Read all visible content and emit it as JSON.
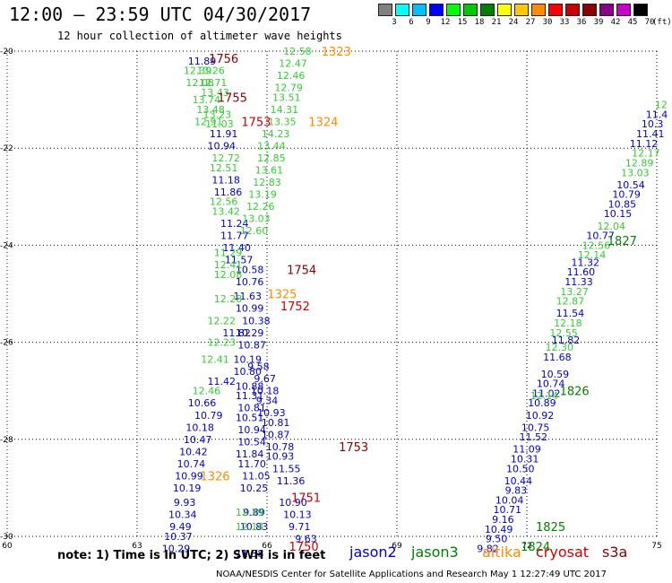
{
  "header": {
    "title": "12:00 – 23:59 UTC 04/30/2017",
    "subtitle": "12 hour collection of altimeter wave heights"
  },
  "colorbar": {
    "unit": "(ft)",
    "levels": [
      "3",
      "6",
      "9",
      "12",
      "15",
      "18",
      "21",
      "24",
      "27",
      "30",
      "33",
      "36",
      "39",
      "42",
      "45",
      "70"
    ],
    "colors": [
      "#808080",
      "#00ffff",
      "#00bfff",
      "#0000ff",
      "#00ff00",
      "#00c800",
      "#008000",
      "#ffff00",
      "#ffc800",
      "#ff8c00",
      "#ff0000",
      "#c80000",
      "#8b0000",
      "#8b008b",
      "#c800c8",
      "#000000"
    ]
  },
  "note": "note: 1) Time is in UTC; 2) SWH is in feet",
  "credit": "NOAA/NESDIS Center for Satellite Applications and Research   May  1 12:27:49 UTC 2017",
  "legend": [
    {
      "name": "jason2",
      "color": "#0000c8"
    },
    {
      "name": "jason3",
      "color": "#008000"
    },
    {
      "name": "altika",
      "color": "#ff8c00"
    },
    {
      "name": "cryosat",
      "color": "#cc0000"
    },
    {
      "name": "s3a",
      "color": "#8b0000"
    }
  ],
  "chart_data": {
    "type": "scatter",
    "title": "12 hour collection of altimeter wave heights",
    "xlim": [
      60,
      75
    ],
    "ylim": [
      -30,
      -20
    ],
    "x_ticks": [
      "60",
      "63",
      "66",
      "69",
      "72",
      "75"
    ],
    "y_ticks": [
      "-20",
      "-22",
      "-24",
      "-26",
      "-28",
      "-30"
    ],
    "grid": true,
    "series": [
      {
        "name": "jason2",
        "color": "#0000c8",
        "points": [
          {
            "x": 64.5,
            "y": -20.2,
            "v": "11.89"
          },
          {
            "x": 65.0,
            "y": -21.7,
            "v": "11.91"
          },
          {
            "x": 64.95,
            "y": -21.95,
            "v": "10.94"
          },
          {
            "x": 65.05,
            "y": -22.65,
            "v": "11.18"
          },
          {
            "x": 65.1,
            "y": -22.9,
            "v": "11.86"
          },
          {
            "x": 65.25,
            "y": -23.55,
            "v": "11.24"
          },
          {
            "x": 65.25,
            "y": -23.8,
            "v": "11.77"
          },
          {
            "x": 65.3,
            "y": -24.05,
            "v": "11.40"
          },
          {
            "x": 65.35,
            "y": -24.3,
            "v": "11.57"
          },
          {
            "x": 65.6,
            "y": -24.5,
            "v": "10.58"
          },
          {
            "x": 65.6,
            "y": -24.75,
            "v": "10.76"
          },
          {
            "x": 65.55,
            "y": -25.05,
            "v": "11.63"
          },
          {
            "x": 65.6,
            "y": -25.3,
            "v": "10.99"
          },
          {
            "x": 65.75,
            "y": -25.55,
            "v": "10.38"
          },
          {
            "x": 65.3,
            "y": -25.8,
            "v": "11.82"
          },
          {
            "x": 65.6,
            "y": -25.8,
            "v": "10.29"
          },
          {
            "x": 65.65,
            "y": -26.05,
            "v": "10.87"
          },
          {
            "x": 65.55,
            "y": -26.35,
            "v": "10.19"
          },
          {
            "x": 65.8,
            "y": -26.5,
            "v": "9.58"
          },
          {
            "x": 65.55,
            "y": -26.6,
            "v": "10.80"
          },
          {
            "x": 65.95,
            "y": -26.75,
            "v": "9.67"
          },
          {
            "x": 64.95,
            "y": -26.8,
            "v": "11.42"
          },
          {
            "x": 65.6,
            "y": -26.9,
            "v": "10.88"
          },
          {
            "x": 65.95,
            "y": -27.0,
            "v": "10.18"
          },
          {
            "x": 65.6,
            "y": -27.1,
            "v": "11.31"
          },
          {
            "x": 66.0,
            "y": -27.2,
            "v": "9.34"
          },
          {
            "x": 64.5,
            "y": -27.25,
            "v": "10.66"
          },
          {
            "x": 65.65,
            "y": -27.35,
            "v": "10.81"
          },
          {
            "x": 66.1,
            "y": -27.45,
            "v": "10.93"
          },
          {
            "x": 64.65,
            "y": -27.5,
            "v": "10.79"
          },
          {
            "x": 65.6,
            "y": -27.55,
            "v": "10.51"
          },
          {
            "x": 66.2,
            "y": -27.65,
            "v": "10.81"
          },
          {
            "x": 64.45,
            "y": -27.75,
            "v": "10.18"
          },
          {
            "x": 65.65,
            "y": -27.8,
            "v": "10.94"
          },
          {
            "x": 66.2,
            "y": -27.9,
            "v": "10.87"
          },
          {
            "x": 64.4,
            "y": -28.0,
            "v": "10.47"
          },
          {
            "x": 65.65,
            "y": -28.05,
            "v": "10.54"
          },
          {
            "x": 66.3,
            "y": -28.15,
            "v": "10.78"
          },
          {
            "x": 64.3,
            "y": -28.25,
            "v": "10.42"
          },
          {
            "x": 65.6,
            "y": -28.3,
            "v": "11.84"
          },
          {
            "x": 66.3,
            "y": -28.35,
            "v": "10.93"
          },
          {
            "x": 64.25,
            "y": -28.5,
            "v": "10.74"
          },
          {
            "x": 65.65,
            "y": -28.5,
            "v": "11.70"
          },
          {
            "x": 66.45,
            "y": -28.6,
            "v": "11.55"
          },
          {
            "x": 64.2,
            "y": -28.75,
            "v": "10.99"
          },
          {
            "x": 65.75,
            "y": -28.75,
            "v": "11.05"
          },
          {
            "x": 66.55,
            "y": -28.85,
            "v": "11.36"
          },
          {
            "x": 64.15,
            "y": -29.0,
            "v": "10.19"
          },
          {
            "x": 65.7,
            "y": -29.0,
            "v": "10.25"
          },
          {
            "x": 64.1,
            "y": -29.3,
            "v": "9.93"
          },
          {
            "x": 65.7,
            "y": -29.5,
            "v": "9.89"
          },
          {
            "x": 66.6,
            "y": -29.3,
            "v": "10.90"
          },
          {
            "x": 64.05,
            "y": -29.55,
            "v": "10.34"
          },
          {
            "x": 66.7,
            "y": -29.55,
            "v": "10.13"
          },
          {
            "x": 64.0,
            "y": -29.8,
            "v": "9.49"
          },
          {
            "x": 65.7,
            "y": -29.8,
            "v": "10.83"
          },
          {
            "x": 66.75,
            "y": -29.8,
            "v": "9.71"
          },
          {
            "x": 63.95,
            "y": -30.0,
            "v": "10.37"
          },
          {
            "x": 66.9,
            "y": -30.05,
            "v": "9.63"
          },
          {
            "x": 63.9,
            "y": -30.25,
            "v": "10.29"
          },
          {
            "x": 65.6,
            "y": -30.35,
            "v": "11.38"
          },
          {
            "x": 75.0,
            "y": -21.3,
            "v": "11.4"
          },
          {
            "x": 74.9,
            "y": -21.5,
            "v": "10.3"
          },
          {
            "x": 74.85,
            "y": -21.7,
            "v": "11.41"
          },
          {
            "x": 74.7,
            "y": -21.9,
            "v": "11.12"
          },
          {
            "x": 74.4,
            "y": -22.75,
            "v": "10.54"
          },
          {
            "x": 74.3,
            "y": -22.95,
            "v": "10.79"
          },
          {
            "x": 74.2,
            "y": -23.15,
            "v": "10.85"
          },
          {
            "x": 74.1,
            "y": -23.35,
            "v": "10.15"
          },
          {
            "x": 73.7,
            "y": -23.8,
            "v": "10.77"
          },
          {
            "x": 73.35,
            "y": -24.35,
            "v": "11.32"
          },
          {
            "x": 73.25,
            "y": -24.55,
            "v": "11.60"
          },
          {
            "x": 73.2,
            "y": -24.75,
            "v": "11.33"
          },
          {
            "x": 73.0,
            "y": -25.4,
            "v": "11.54"
          },
          {
            "x": 72.9,
            "y": -25.95,
            "v": "11.82"
          },
          {
            "x": 72.7,
            "y": -26.3,
            "v": "11.68"
          },
          {
            "x": 72.65,
            "y": -26.65,
            "v": "10.59"
          },
          {
            "x": 72.55,
            "y": -26.85,
            "v": "10.74"
          },
          {
            "x": 72.45,
            "y": -27.05,
            "v": "11.02"
          },
          {
            "x": 72.35,
            "y": -27.25,
            "v": "10.89"
          },
          {
            "x": 72.3,
            "y": -27.5,
            "v": "10.92"
          },
          {
            "x": 72.2,
            "y": -27.75,
            "v": "10.75"
          },
          {
            "x": 72.15,
            "y": -27.95,
            "v": "11.52"
          },
          {
            "x": 72.0,
            "y": -28.2,
            "v": "11.09"
          },
          {
            "x": 71.95,
            "y": -28.4,
            "v": "10.31"
          },
          {
            "x": 71.85,
            "y": -28.6,
            "v": "10.50"
          },
          {
            "x": 71.8,
            "y": -28.85,
            "v": "10.44"
          },
          {
            "x": 71.75,
            "y": -29.05,
            "v": "9.83"
          },
          {
            "x": 71.6,
            "y": -29.25,
            "v": "10.04"
          },
          {
            "x": 71.55,
            "y": -29.45,
            "v": "10.71"
          },
          {
            "x": 71.45,
            "y": -29.65,
            "v": "9.16"
          },
          {
            "x": 71.35,
            "y": -29.85,
            "v": "10.49"
          },
          {
            "x": 71.3,
            "y": -30.05,
            "v": "9.50"
          },
          {
            "x": 71.1,
            "y": -30.25,
            "v": "9.82"
          }
        ]
      },
      {
        "name": "jason3",
        "color": "#32cd32",
        "points": [
          {
            "x": 66.7,
            "y": -20.0,
            "v": "12.58"
          },
          {
            "x": 66.6,
            "y": -20.25,
            "v": "12.47"
          },
          {
            "x": 66.55,
            "y": -20.5,
            "v": "12.46"
          },
          {
            "x": 66.5,
            "y": -20.75,
            "v": "12.79"
          },
          {
            "x": 66.45,
            "y": -20.95,
            "v": "13.51"
          },
          {
            "x": 66.4,
            "y": -21.2,
            "v": "14.31"
          },
          {
            "x": 66.35,
            "y": -21.45,
            "v": "13.35"
          },
          {
            "x": 66.2,
            "y": -21.7,
            "v": "14.23"
          },
          {
            "x": 66.1,
            "y": -21.95,
            "v": "13.44"
          },
          {
            "x": 66.1,
            "y": -22.2,
            "v": "12.85"
          },
          {
            "x": 66.05,
            "y": -22.45,
            "v": "13.61"
          },
          {
            "x": 66.0,
            "y": -22.7,
            "v": "12.83"
          },
          {
            "x": 65.9,
            "y": -22.95,
            "v": "13.19"
          },
          {
            "x": 65.85,
            "y": -23.2,
            "v": "12.26"
          },
          {
            "x": 65.75,
            "y": -23.45,
            "v": "13.03"
          },
          {
            "x": 65.7,
            "y": -23.7,
            "v": "12.60"
          },
          {
            "x": 64.4,
            "y": -20.4,
            "v": "12.39"
          },
          {
            "x": 64.7,
            "y": -20.4,
            "v": "13.26"
          },
          {
            "x": 64.45,
            "y": -20.65,
            "v": "12.08"
          },
          {
            "x": 64.75,
            "y": -20.65,
            "v": "12.71"
          },
          {
            "x": 64.8,
            "y": -20.85,
            "v": "13.43"
          },
          {
            "x": 64.6,
            "y": -21.0,
            "v": "13.74"
          },
          {
            "x": 64.7,
            "y": -21.2,
            "v": "13.48"
          },
          {
            "x": 64.85,
            "y": -21.3,
            "v": "13.23"
          },
          {
            "x": 64.65,
            "y": -21.45,
            "v": "12.91"
          },
          {
            "x": 64.9,
            "y": -21.5,
            "v": "11.03"
          },
          {
            "x": 65.05,
            "y": -22.2,
            "v": "12.72"
          },
          {
            "x": 65.0,
            "y": -22.4,
            "v": "12.51"
          },
          {
            "x": 65.0,
            "y": -23.1,
            "v": "12.56"
          },
          {
            "x": 65.05,
            "y": -23.3,
            "v": "13.42"
          },
          {
            "x": 65.1,
            "y": -24.15,
            "v": "11.29"
          },
          {
            "x": 65.1,
            "y": -24.4,
            "v": "12.41"
          },
          {
            "x": 65.1,
            "y": -24.6,
            "v": "12.08"
          },
          {
            "x": 65.1,
            "y": -25.1,
            "v": "12.28"
          },
          {
            "x": 64.95,
            "y": -25.55,
            "v": "12.22"
          },
          {
            "x": 64.95,
            "y": -26.0,
            "v": "12.23"
          },
          {
            "x": 64.8,
            "y": -26.35,
            "v": "12.41"
          },
          {
            "x": 64.6,
            "y": -27.0,
            "v": "12.46"
          },
          {
            "x": 65.6,
            "y": -29.5,
            "v": "12.39"
          },
          {
            "x": 65.6,
            "y": -29.8,
            "v": "12.14"
          },
          {
            "x": 75.1,
            "y": -21.1,
            "v": "12"
          },
          {
            "x": 74.75,
            "y": -22.1,
            "v": "12.17"
          },
          {
            "x": 74.6,
            "y": -22.3,
            "v": "12.89"
          },
          {
            "x": 74.5,
            "y": -22.5,
            "v": "13.03"
          },
          {
            "x": 73.95,
            "y": -23.6,
            "v": "12.04"
          },
          {
            "x": 73.6,
            "y": -24.0,
            "v": "12.56"
          },
          {
            "x": 73.5,
            "y": -24.2,
            "v": "12.14"
          },
          {
            "x": 73.1,
            "y": -24.95,
            "v": "13.27"
          },
          {
            "x": 73.0,
            "y": -25.15,
            "v": "12.87"
          },
          {
            "x": 72.95,
            "y": -25.6,
            "v": "12.18"
          },
          {
            "x": 72.85,
            "y": -25.8,
            "v": "12.55"
          },
          {
            "x": 72.75,
            "y": -26.1,
            "v": "12.30"
          },
          {
            "x": 72.4,
            "y": -27.1,
            "v": "12.14"
          }
        ]
      },
      {
        "name": "altika",
        "color": "#ff8c00",
        "points": []
      }
    ],
    "time_labels": [
      {
        "x": 65.0,
        "y": -20.15,
        "t": "1756",
        "color": "#8b0000"
      },
      {
        "x": 67.6,
        "y": -20.0,
        "t": "1323",
        "color": "#ff8c00"
      },
      {
        "x": 65.2,
        "y": -20.95,
        "t": "1755",
        "color": "#8b0000"
      },
      {
        "x": 65.75,
        "y": -21.45,
        "t": "1753",
        "color": "#cc0000"
      },
      {
        "x": 67.3,
        "y": -21.45,
        "t": "1324",
        "color": "#ff8c00"
      },
      {
        "x": 66.8,
        "y": -24.5,
        "t": "1754",
        "color": "#8b0000"
      },
      {
        "x": 66.35,
        "y": -25.0,
        "t": "1325",
        "color": "#ff8c00"
      },
      {
        "x": 66.65,
        "y": -25.25,
        "t": "1752",
        "color": "#cc0000"
      },
      {
        "x": 74.2,
        "y": -23.9,
        "t": "1827",
        "color": "#008000"
      },
      {
        "x": 73.1,
        "y": -27.0,
        "t": "1826",
        "color": "#008000"
      },
      {
        "x": 68.0,
        "y": -28.15,
        "t": "1753",
        "color": "#8b0000"
      },
      {
        "x": 64.8,
        "y": -28.75,
        "t": "1326",
        "color": "#ff8c00"
      },
      {
        "x": 66.9,
        "y": -29.2,
        "t": "1751",
        "color": "#cc0000"
      },
      {
        "x": 72.55,
        "y": -29.8,
        "t": "1825",
        "color": "#008000"
      },
      {
        "x": 72.2,
        "y": -30.2,
        "t": "1824",
        "color": "#008000"
      },
      {
        "x": 66.85,
        "y": -30.2,
        "t": "1750",
        "color": "#cc0000"
      }
    ]
  }
}
